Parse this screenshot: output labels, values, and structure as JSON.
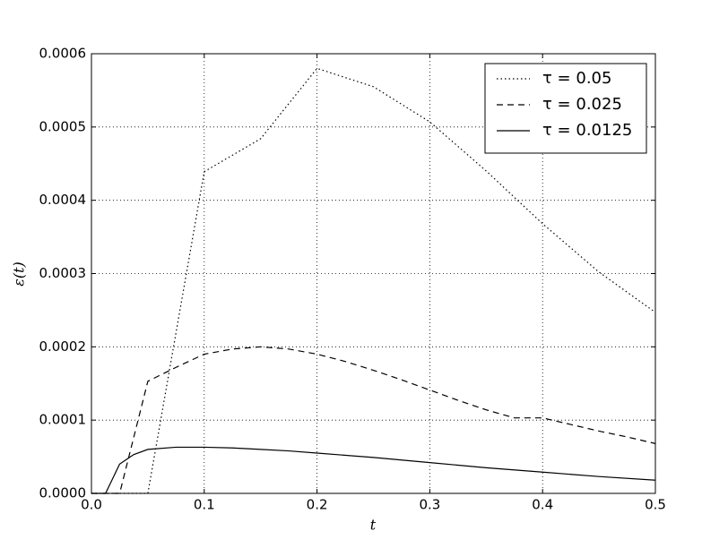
{
  "chart_data": {
    "type": "line",
    "xlabel": "t",
    "ylabel": "ε(t)",
    "xlim": [
      0,
      0.5
    ],
    "xticks": [
      {
        "value": 0,
        "label": "0.0"
      },
      {
        "value": 0.1,
        "label": "0.1"
      },
      {
        "value": 0.2,
        "label": "0.2"
      },
      {
        "value": 0.3,
        "label": "0.3"
      },
      {
        "value": 0.4,
        "label": "0.4"
      },
      {
        "value": 0.5,
        "label": "0.5"
      }
    ],
    "ylim": [
      0,
      0.0006
    ],
    "yticks": [
      {
        "value": 0,
        "label": "0.0000"
      },
      {
        "value": 0.0001,
        "label": "0.0001"
      },
      {
        "value": 0.0002,
        "label": "0.0002"
      },
      {
        "value": 0.0003,
        "label": "0.0003"
      },
      {
        "value": 0.0004,
        "label": "0.0004"
      },
      {
        "value": 0.0005,
        "label": "0.0005"
      },
      {
        "value": 0.0006,
        "label": "0.0006"
      }
    ],
    "grid": true,
    "legend": "upper right",
    "series": [
      {
        "name": "τ = 0.05",
        "color": "#000000",
        "dash": "dotted",
        "x": [
          0,
          0.05,
          0.1,
          0.15,
          0.2,
          0.25,
          0.3,
          0.35,
          0.4,
          0.45,
          0.5
        ],
        "values": [
          0,
          0,
          0.000439,
          0.000484,
          0.00058,
          0.000555,
          0.000507,
          0.00044,
          0.000368,
          0.000302,
          0.000247
        ]
      },
      {
        "name": "τ = 0.025",
        "color": "#000000",
        "dash": "dashed",
        "x": [
          0,
          0.025,
          0.05,
          0.075,
          0.1,
          0.125,
          0.15,
          0.175,
          0.2,
          0.225,
          0.25,
          0.275,
          0.3,
          0.325,
          0.35,
          0.375,
          0.4,
          0.425,
          0.45,
          0.475,
          0.5
        ],
        "values": [
          0,
          0,
          0.000153,
          0.000172,
          0.00019,
          0.000197,
          0.0002,
          0.000197,
          0.00019,
          0.00018,
          0.000168,
          0.000155,
          0.000141,
          0.000127,
          0.000114,
          0.000103,
          0.000103,
          9.4e-05,
          8.5e-05,
          7.7e-05,
          6.8e-05
        ]
      },
      {
        "name": "τ = 0.0125",
        "color": "#000000",
        "dash": "solid",
        "x": [
          0,
          0.0125,
          0.025,
          0.0375,
          0.05,
          0.075,
          0.1,
          0.125,
          0.15,
          0.175,
          0.2,
          0.25,
          0.3,
          0.35,
          0.4,
          0.45,
          0.5
        ],
        "values": [
          0,
          0,
          4e-05,
          5.3e-05,
          6e-05,
          6.3e-05,
          6.3e-05,
          6.2e-05,
          6e-05,
          5.8e-05,
          5.5e-05,
          4.9e-05,
          4.2e-05,
          3.5e-05,
          2.9e-05,
          2.3e-05,
          1.8e-05
        ]
      }
    ]
  }
}
